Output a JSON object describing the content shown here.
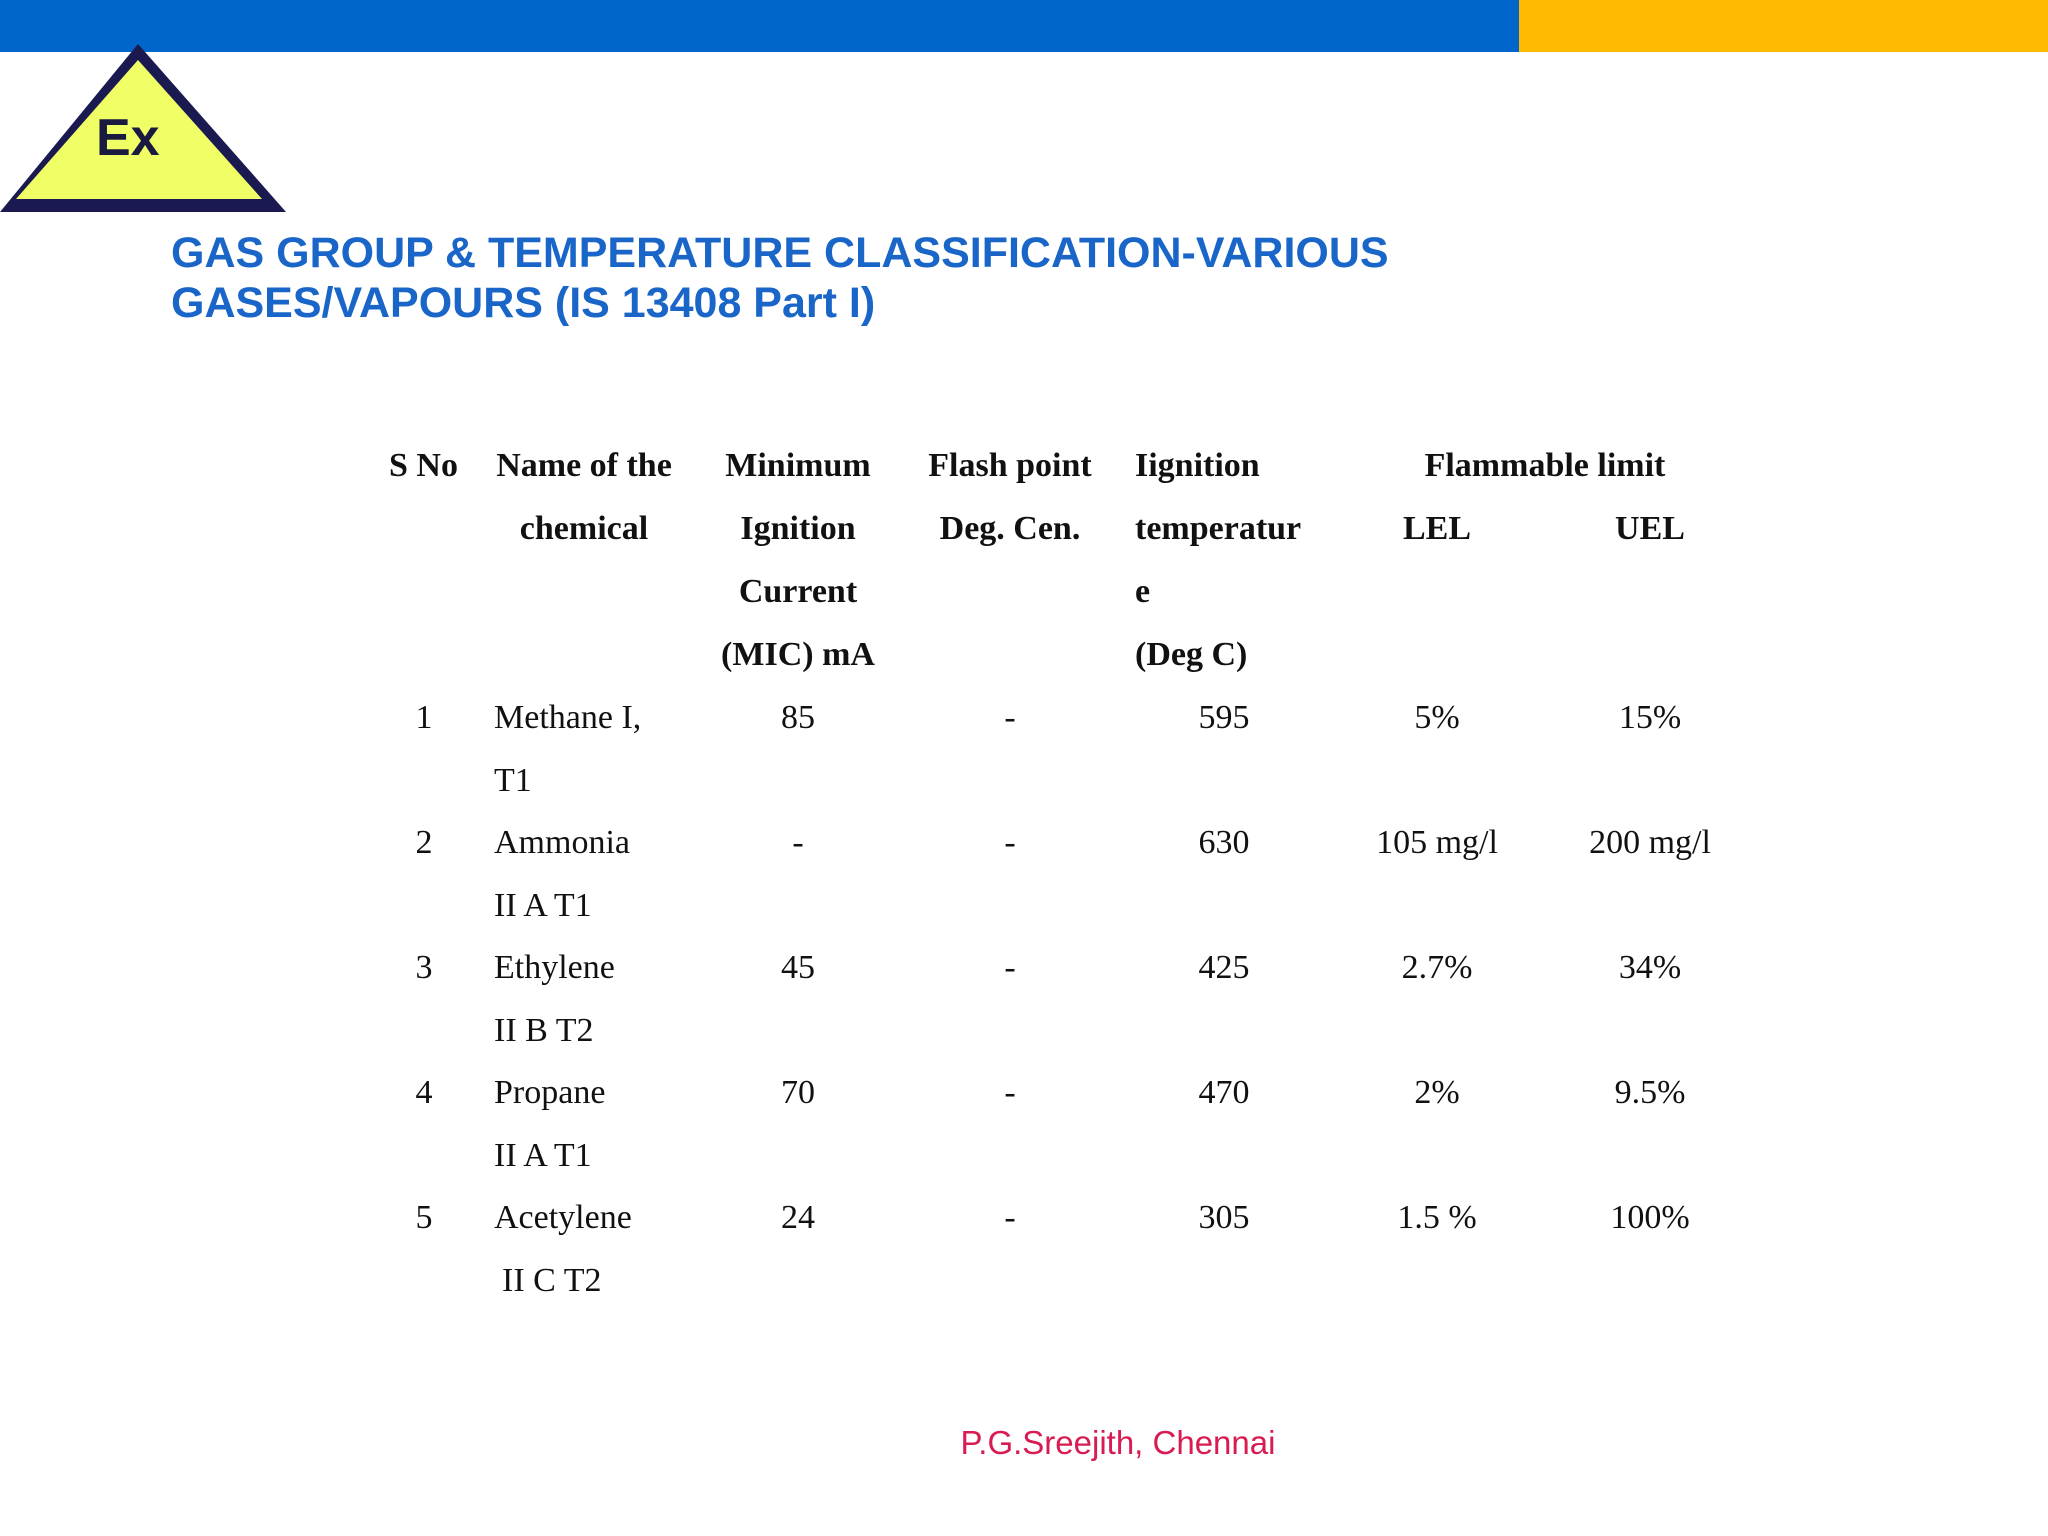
{
  "colors": {
    "top_bar_blue": "#0066cc",
    "top_bar_gold": "#ffbb00",
    "logo_fill": "#f0ff66",
    "logo_border": "#1a1a50",
    "title": "#1a66c8",
    "footer": "#d81b50"
  },
  "logo": {
    "text": "Ex",
    "icon": "ex-warning-triangle-icon"
  },
  "title": {
    "line1": "GAS GROUP & TEMPERATURE CLASSIFICATION-VARIOUS",
    "line2": "GASES/VAPOURS (IS 13408 Part I)"
  },
  "table": {
    "headers": {
      "sno": "S No",
      "name": [
        "Name of the",
        "chemical"
      ],
      "mic": [
        "Minimum",
        "Ignition",
        "Current",
        "(MIC) mA"
      ],
      "flash": [
        "Flash point",
        "Deg. Cen."
      ],
      "ignition": [
        "Iignition",
        "temperatur",
        "e",
        "(Deg C)"
      ],
      "flammable": "Flammable limit",
      "lel": "LEL",
      "uel": "UEL"
    },
    "rows": [
      {
        "sno": "1",
        "name1": "Methane I,",
        "name2": "T1",
        "mic": "85",
        "flash": "-",
        "ignition": "595",
        "lel": "5%",
        "uel": "15%"
      },
      {
        "sno": "2",
        "name1": "Ammonia",
        "name2": "II A T1",
        "mic": "-",
        "flash": "-",
        "ignition": "630",
        "lel": "105 mg/l",
        "uel": "200 mg/l"
      },
      {
        "sno": "3",
        "name1": "Ethylene",
        "name2": "II B T2",
        "mic": "45",
        "flash": "-",
        "ignition": "425",
        "lel": "2.7%",
        "uel": "34%"
      },
      {
        "sno": "4",
        "name1": "Propane",
        "name2": "II A T1",
        "mic": "70",
        "flash": "-",
        "ignition": "470",
        "lel": "2%",
        "uel": "9.5%"
      },
      {
        "sno": "5",
        "name1": "Acetylene",
        "name2": "II C T2",
        "mic": "24",
        "flash": "-",
        "ignition": "305",
        "lel": "1.5 %",
        "uel": "100%"
      }
    ]
  },
  "footer": {
    "text": "P.G.Sreejith, Chennai"
  }
}
